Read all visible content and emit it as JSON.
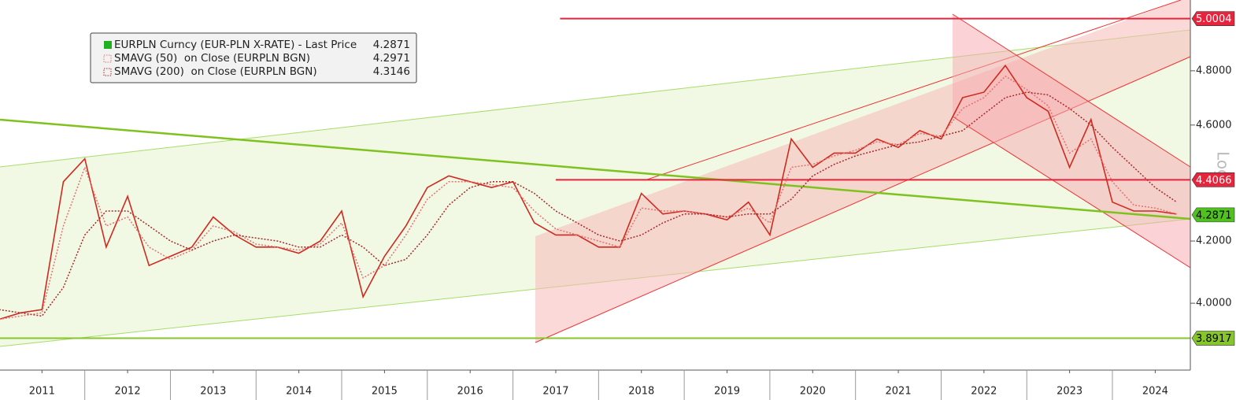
{
  "chart_data": {
    "type": "line",
    "log": true,
    "scale_label": "Log",
    "x": [
      2011.0,
      2011.25,
      2011.5,
      2011.75,
      2012.0,
      2012.25,
      2012.5,
      2012.75,
      2013.0,
      2013.25,
      2013.5,
      2013.75,
      2014.0,
      2014.25,
      2014.5,
      2014.75,
      2015.0,
      2015.25,
      2015.5,
      2015.75,
      2016.0,
      2016.25,
      2016.5,
      2016.75,
      2017.0,
      2017.25,
      2017.5,
      2017.75,
      2018.0,
      2018.25,
      2018.5,
      2018.75,
      2019.0,
      2019.25,
      2019.5,
      2019.75,
      2020.0,
      2020.25,
      2020.5,
      2020.75,
      2021.0,
      2021.25,
      2021.5,
      2021.75,
      2022.0,
      2022.25,
      2022.5,
      2022.75,
      2023.0,
      2023.25,
      2023.5,
      2023.75,
      2024.0,
      2024.25,
      2024.5,
      2024.75
    ],
    "series": [
      {
        "name": "EURPLN Curncy (EUR-PLN X-RATE) - Last Price",
        "last": 4.2871,
        "color": "#cf2a1f",
        "legend_color": "#22b022",
        "values": [
          3.95,
          3.97,
          3.98,
          4.4,
          4.48,
          4.18,
          4.35,
          4.12,
          4.15,
          4.18,
          4.28,
          4.22,
          4.18,
          4.18,
          4.16,
          4.2,
          4.3,
          4.02,
          4.15,
          4.25,
          4.38,
          4.42,
          4.4,
          4.38,
          4.4,
          4.26,
          4.22,
          4.22,
          4.18,
          4.18,
          4.36,
          4.29,
          4.3,
          4.29,
          4.27,
          4.33,
          4.22,
          4.55,
          4.45,
          4.5,
          4.5,
          4.55,
          4.52,
          4.58,
          4.55,
          4.7,
          4.72,
          4.82,
          4.7,
          4.65,
          4.45,
          4.62,
          4.33,
          4.3,
          4.3,
          4.29
        ]
      },
      {
        "name": "SMAVG (50)  on Close (EURPLN BGN)",
        "last": 4.2971,
        "color": "#e87070",
        "dotted": true,
        "values": [
          3.95,
          3.96,
          3.97,
          4.25,
          4.45,
          4.25,
          4.28,
          4.18,
          4.14,
          4.17,
          4.25,
          4.23,
          4.19,
          4.18,
          4.17,
          4.19,
          4.26,
          4.08,
          4.12,
          4.22,
          4.34,
          4.4,
          4.4,
          4.39,
          4.38,
          4.3,
          4.24,
          4.22,
          4.2,
          4.18,
          4.31,
          4.3,
          4.3,
          4.29,
          4.28,
          4.31,
          4.26,
          4.45,
          4.46,
          4.49,
          4.51,
          4.54,
          4.53,
          4.57,
          4.56,
          4.66,
          4.7,
          4.78,
          4.73,
          4.67,
          4.5,
          4.55,
          4.4,
          4.32,
          4.31,
          4.29
        ]
      },
      {
        "name": "SMAVG (200)  on Close (EURPLN BGN)",
        "last": 4.3146,
        "color": "#a82828",
        "dotted": true,
        "values": [
          3.98,
          3.97,
          3.96,
          4.05,
          4.22,
          4.3,
          4.3,
          4.25,
          4.2,
          4.17,
          4.2,
          4.22,
          4.21,
          4.2,
          4.18,
          4.18,
          4.22,
          4.18,
          4.12,
          4.14,
          4.22,
          4.32,
          4.38,
          4.4,
          4.4,
          4.36,
          4.3,
          4.26,
          4.22,
          4.2,
          4.22,
          4.26,
          4.29,
          4.29,
          4.28,
          4.29,
          4.29,
          4.34,
          4.42,
          4.46,
          4.49,
          4.51,
          4.53,
          4.54,
          4.56,
          4.58,
          4.64,
          4.7,
          4.72,
          4.71,
          4.66,
          4.6,
          4.52,
          4.45,
          4.38,
          4.33
        ]
      }
    ],
    "levels": [
      {
        "value": 5.0004,
        "color": "#e8243c",
        "from": 2017.55
      },
      {
        "value": 4.4066,
        "color": "#e8243c",
        "from": 2017.5
      },
      {
        "value": 4.2871,
        "color": "#4fc21f",
        "from": null
      },
      {
        "value": 3.8917,
        "color": "#86c62a",
        "from": 2011.01
      }
    ],
    "xlim": [
      2011.01,
      2024.91
    ],
    "xticks": [
      {
        "value": 2011.5,
        "label": "2011"
      },
      {
        "value": 2012.5,
        "label": "2012"
      },
      {
        "value": 2013.5,
        "label": "2013"
      },
      {
        "value": 2014.5,
        "label": "2014"
      },
      {
        "value": 2015.5,
        "label": "2015"
      },
      {
        "value": 2016.5,
        "label": "2016"
      },
      {
        "value": 2017.5,
        "label": "2017"
      },
      {
        "value": 2018.5,
        "label": "2018"
      },
      {
        "value": 2019.5,
        "label": "2019"
      },
      {
        "value": 2020.5,
        "label": "2020"
      },
      {
        "value": 2021.5,
        "label": "2021"
      },
      {
        "value": 2022.5,
        "label": "2022"
      },
      {
        "value": 2023.5,
        "label": "2023"
      },
      {
        "value": 2024.5,
        "label": "2024"
      }
    ],
    "ylim": [
      3.7957,
      5.074
    ],
    "yticks": [
      {
        "value": 4.0,
        "label": "4.0000"
      },
      {
        "value": 4.2,
        "label": "4.2000"
      },
      {
        "value": 4.6,
        "label": "4.6000"
      },
      {
        "value": 4.8,
        "label": "4.8000"
      }
    ]
  }
}
